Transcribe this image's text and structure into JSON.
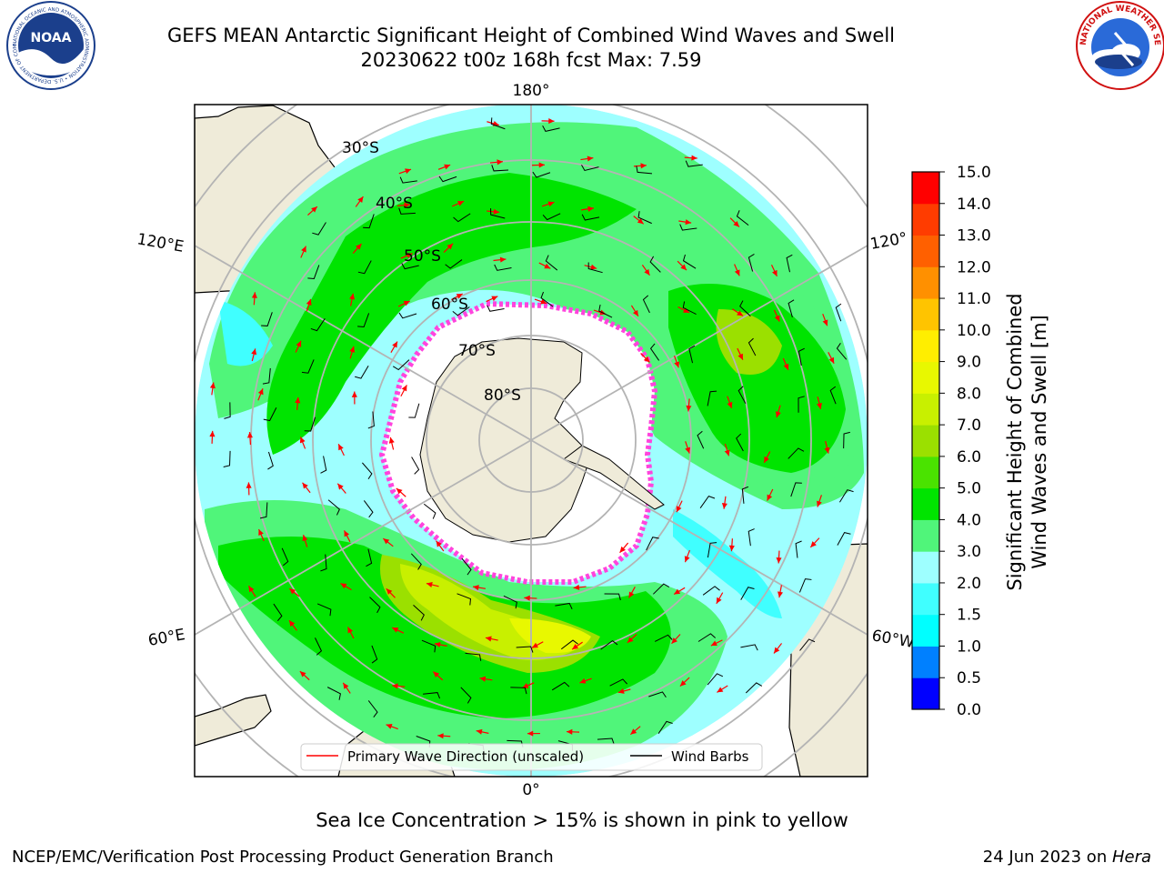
{
  "title": {
    "line1": "GEFS MEAN Antarctic Significant Height of Combined Wind Waves and Swell",
    "line2": "20230622 t00z 168h fcst   Max: 7.59"
  },
  "logos": {
    "noaa": "NOAA",
    "noaa_ring": "NATIONAL OCEANIC AND ATMOSPHERIC ADMINISTRATION • U.S. DEPARTMENT OF COMMERCE",
    "nws_ring": "NATIONAL WEATHER SERVICE"
  },
  "map": {
    "longitude_labels": {
      "top": "180°",
      "bottom": "0°",
      "left_upper": "120°E",
      "right_upper": "120°",
      "left_lower": "60°E",
      "right_lower": "60°W"
    },
    "latitude_labels": [
      "30°S",
      "40°S",
      "50°S",
      "60°S",
      "70°S",
      "80°S"
    ],
    "colors": {
      "land": "#efebd9",
      "ocean_low": "#9effff",
      "ocean_mid": "#50f57a",
      "ocean_high": "#00e400",
      "ice": "#ffffff",
      "ice_edge": "#ff44dd",
      "arrow": "#ff0000",
      "barb": "#000000",
      "grid": "#b4b4b4"
    }
  },
  "legend": {
    "wave_dir_label": "Primary Wave Direction (unscaled)",
    "wind_barb_label": "Wind Barbs"
  },
  "colorbar": {
    "label_line1": "Significant Height of Combined",
    "label_line2": "Wind Waves and Swell [m]",
    "ticks": [
      "0.0",
      "0.5",
      "1.0",
      "1.5",
      "2.0",
      "3.0",
      "4.0",
      "5.0",
      "6.0",
      "7.0",
      "8.0",
      "9.0",
      "10.0",
      "11.0",
      "12.0",
      "13.0",
      "14.0",
      "15.0"
    ],
    "colors": [
      "#0000ff",
      "#0080ff",
      "#00ffff",
      "#40ffff",
      "#9effff",
      "#50f57a",
      "#00e400",
      "#4ae300",
      "#9be000",
      "#c8f000",
      "#e8f800",
      "#ffee00",
      "#ffc400",
      "#ff9000",
      "#ff6000",
      "#ff3c00",
      "#ff0000"
    ]
  },
  "caption": "Sea Ice Concentration > 15% is shown in pink to yellow",
  "footer": {
    "left": "NCEP/EMC/Verification Post Processing Product Generation Branch",
    "right_prefix": "24 Jun 2023 on ",
    "right_host": "Hera"
  }
}
